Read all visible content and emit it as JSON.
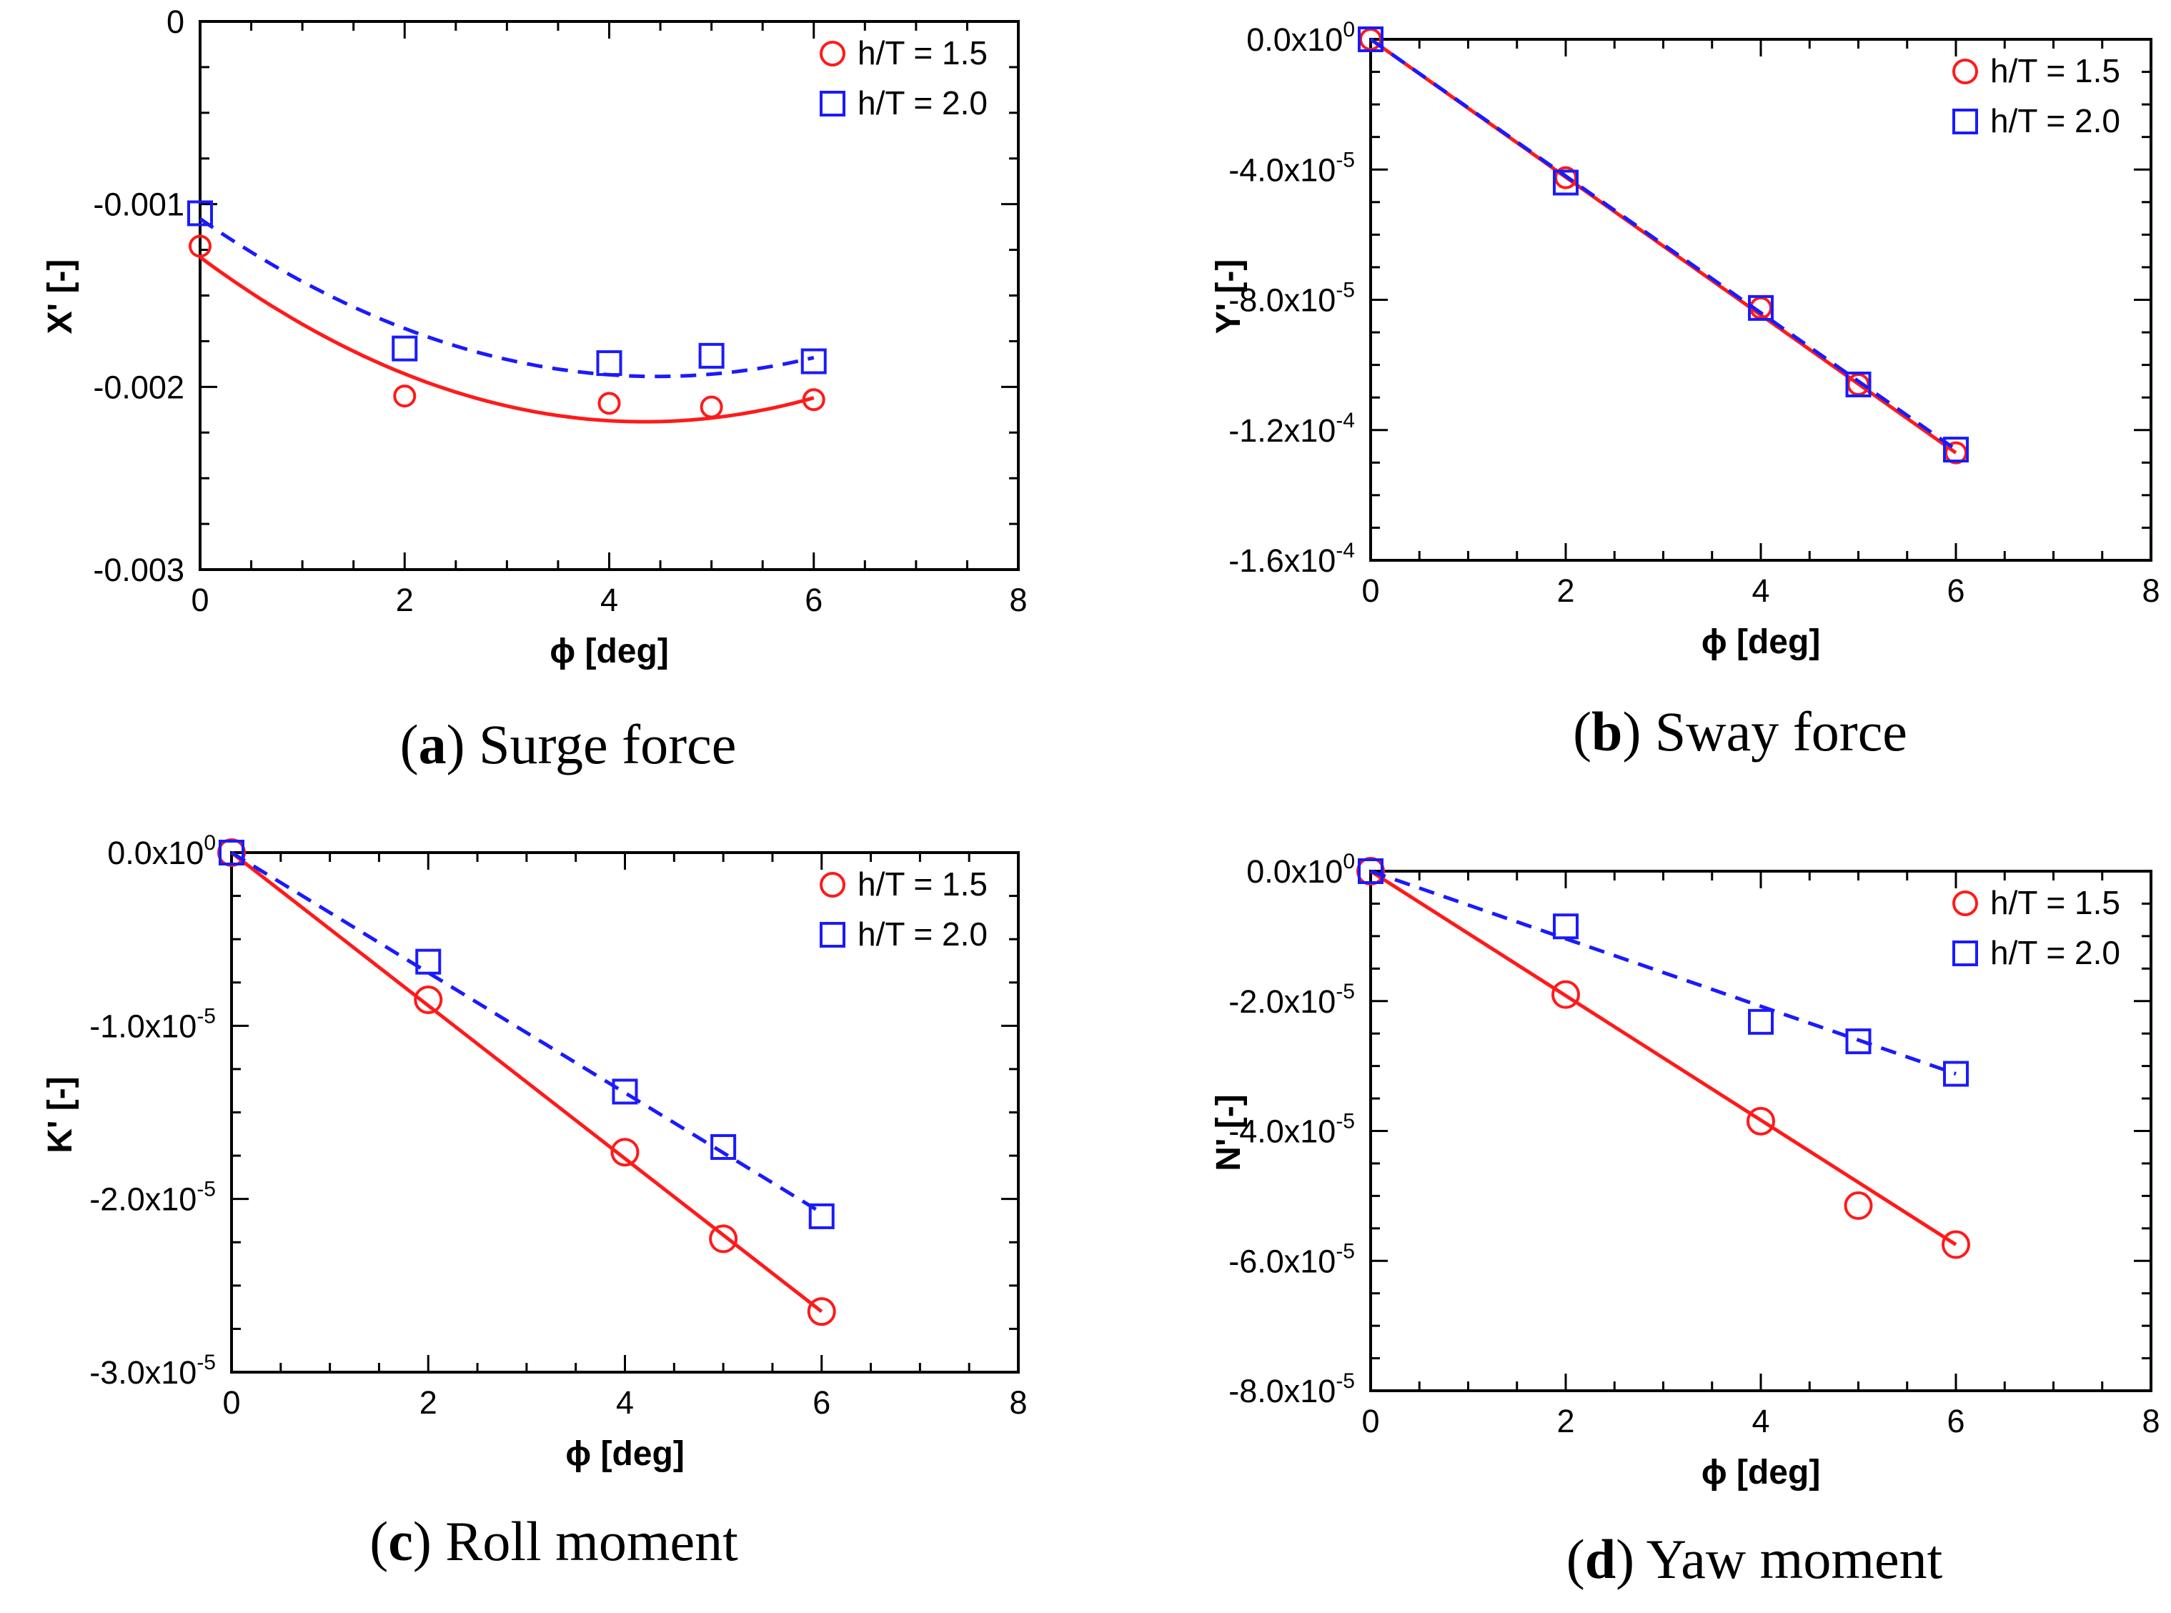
{
  "colors": {
    "red": "#ff1a1a",
    "blue": "#1a1aff"
  },
  "chart_data": [
    {
      "id": "a",
      "type": "scatter",
      "caption_letter": "a",
      "caption_text": "Surge force",
      "xlabel": "ϕ [deg]",
      "ylabel": "X' [-]",
      "xlim": [
        0,
        8
      ],
      "ylim": [
        -0.003,
        0
      ],
      "xticks": [
        0,
        2,
        4,
        6,
        8
      ],
      "yticks": [
        {
          "value": 0,
          "label": "0",
          "exp": ""
        },
        {
          "value": -0.001,
          "label": "-0.001",
          "exp": ""
        },
        {
          "value": -0.002,
          "label": "-0.002",
          "exp": ""
        },
        {
          "value": -0.003,
          "label": "-0.003",
          "exp": ""
        }
      ],
      "legend_position": "top-right",
      "series": [
        {
          "name": "h/T = 1.5",
          "marker": "circle",
          "line": "solid",
          "color": "#ff1a1a",
          "x": [
            0,
            2,
            4,
            5,
            6
          ],
          "y": [
            -0.00123,
            -0.00205,
            -0.00209,
            -0.00211,
            -0.00207
          ],
          "fit": {
            "kind": "quadratic",
            "x": [
              0,
              4.2,
              6
            ],
            "y": [
              -0.00129,
              -0.00219,
              -0.00206
            ]
          }
        },
        {
          "name": "h/T = 2.0",
          "marker": "square",
          "line": "dashed",
          "color": "#1a1aff",
          "x": [
            0,
            2,
            4,
            5,
            6
          ],
          "y": [
            -0.00105,
            -0.00179,
            -0.00187,
            -0.00183,
            -0.00186
          ],
          "fit": {
            "kind": "quadratic",
            "x": [
              0,
              4.2,
              6
            ],
            "y": [
              -0.00108,
              -0.00194,
              -0.00184
            ]
          }
        }
      ]
    },
    {
      "id": "b",
      "type": "scatter",
      "caption_letter": "b",
      "caption_text": "Sway force",
      "xlabel": "ϕ [deg]",
      "ylabel": "Y' [-]",
      "xlim": [
        0,
        8
      ],
      "ylim": [
        -0.00016,
        0
      ],
      "xticks": [
        0,
        2,
        4,
        6,
        8
      ],
      "yticks": [
        {
          "value": 0,
          "label": "0.0x10",
          "exp": "0"
        },
        {
          "value": -4e-05,
          "label": "-4.0x10",
          "exp": "-5"
        },
        {
          "value": -8e-05,
          "label": "-8.0x10",
          "exp": "-5"
        },
        {
          "value": -0.00012,
          "label": "-1.2x10",
          "exp": "-4"
        },
        {
          "value": -0.00016,
          "label": "-1.6x10",
          "exp": "-4"
        }
      ],
      "legend_position": "top-right",
      "series": [
        {
          "name": "h/T = 1.5",
          "marker": "circle",
          "line": "solid",
          "color": "#ff1a1a",
          "x": [
            0,
            2,
            4,
            5,
            6
          ],
          "y": [
            0,
            -4.25e-05,
            -8.25e-05,
            -0.000106,
            -0.000127
          ],
          "fit": {
            "kind": "linear",
            "x": [
              0,
              6
            ],
            "y": [
              0,
              -0.000127
            ]
          }
        },
        {
          "name": "h/T = 2.0",
          "marker": "square",
          "line": "dashed",
          "color": "#1a1aff",
          "x": [
            0,
            2,
            4,
            5,
            6
          ],
          "y": [
            0,
            -4.4e-05,
            -8.25e-05,
            -0.000106,
            -0.000126
          ],
          "fit": {
            "kind": "linear",
            "x": [
              0,
              6
            ],
            "y": [
              0,
              -0.000126
            ]
          }
        }
      ]
    },
    {
      "id": "c",
      "type": "scatter",
      "caption_letter": "c",
      "caption_text": "Roll moment",
      "xlabel": "ϕ [deg]",
      "ylabel": "K' [-]",
      "xlim": [
        0,
        8
      ],
      "ylim": [
        -3e-05,
        0
      ],
      "xticks": [
        0,
        2,
        4,
        6,
        8
      ],
      "yticks": [
        {
          "value": 0,
          "label": "0.0x10",
          "exp": "0"
        },
        {
          "value": -1e-05,
          "label": "-1.0x10",
          "exp": "-5"
        },
        {
          "value": -2e-05,
          "label": "-2.0x10",
          "exp": "-5"
        },
        {
          "value": -3e-05,
          "label": "-3.0x10",
          "exp": "-5"
        }
      ],
      "legend_position": "top-right",
      "series": [
        {
          "name": "h/T = 1.5",
          "marker": "circle",
          "line": "solid",
          "color": "#ff1a1a",
          "x": [
            0,
            2,
            4,
            5,
            6
          ],
          "y": [
            0,
            -8.5e-06,
            -1.73e-05,
            -2.23e-05,
            -2.65e-05
          ],
          "fit": {
            "kind": "linear",
            "x": [
              0,
              6
            ],
            "y": [
              0,
              -2.65e-05
            ]
          }
        },
        {
          "name": "h/T = 2.0",
          "marker": "square",
          "line": "dashed",
          "color": "#1a1aff",
          "x": [
            0,
            2,
            4,
            5,
            6
          ],
          "y": [
            0,
            -6.3e-06,
            -1.38e-05,
            -1.7e-05,
            -2.1e-05
          ],
          "fit": {
            "kind": "linear",
            "x": [
              0,
              6
            ],
            "y": [
              0,
              -2.08e-05
            ]
          }
        }
      ]
    },
    {
      "id": "d",
      "type": "scatter",
      "caption_letter": "d",
      "caption_text": "Yaw moment",
      "xlabel": "ϕ [deg]",
      "ylabel": "N' [-]",
      "xlim": [
        0,
        8
      ],
      "ylim": [
        -8e-05,
        0
      ],
      "xticks": [
        0,
        2,
        4,
        6,
        8
      ],
      "yticks": [
        {
          "value": 0,
          "label": "0.0x10",
          "exp": "0"
        },
        {
          "value": -2e-05,
          "label": "-2.0x10",
          "exp": "-5"
        },
        {
          "value": -4e-05,
          "label": "-4.0x10",
          "exp": "-5"
        },
        {
          "value": -6e-05,
          "label": "-6.0x10",
          "exp": "-5"
        },
        {
          "value": -8e-05,
          "label": "-8.0x10",
          "exp": "-5"
        }
      ],
      "legend_position": "top-right",
      "series": [
        {
          "name": "h/T = 1.5",
          "marker": "circle",
          "line": "solid",
          "color": "#ff1a1a",
          "x": [
            0,
            2,
            4,
            5,
            6
          ],
          "y": [
            0,
            -1.9e-05,
            -3.85e-05,
            -5.15e-05,
            -5.75e-05
          ],
          "fit": {
            "kind": "linear",
            "x": [
              0,
              6
            ],
            "y": [
              0,
              -5.75e-05
            ]
          }
        },
        {
          "name": "h/T = 2.0",
          "marker": "square",
          "line": "dashed",
          "color": "#1a1aff",
          "x": [
            0,
            2,
            4,
            5,
            6
          ],
          "y": [
            0,
            -8.5e-06,
            -2.32e-05,
            -2.62e-05,
            -3.12e-05
          ],
          "fit": {
            "kind": "linear",
            "x": [
              0,
              6
            ],
            "y": [
              0,
              -3.12e-05
            ]
          }
        }
      ]
    }
  ]
}
